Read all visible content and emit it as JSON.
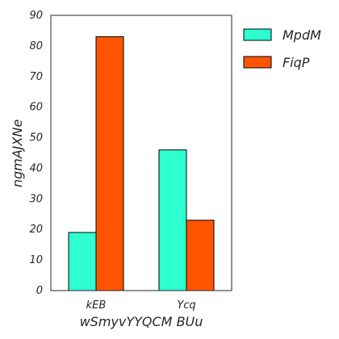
{
  "chart_data": {
    "type": "bar",
    "categories": [
      "kEB",
      "Ycq"
    ],
    "series": [
      {
        "name": "MpdM",
        "values": [
          19,
          46
        ],
        "color": "#2effd0"
      },
      {
        "name": "FiqP",
        "values": [
          83,
          23
        ],
        "color": "#ff5500"
      }
    ],
    "xlabel": "wSmyvYYQCM BUu",
    "ylabel": "ngmAJXNe",
    "ylim": [
      0,
      90
    ],
    "yticks": [
      0,
      10,
      20,
      30,
      40,
      50,
      60,
      70,
      80,
      90
    ],
    "grid": false,
    "legend_position": "outside-right-top"
  }
}
